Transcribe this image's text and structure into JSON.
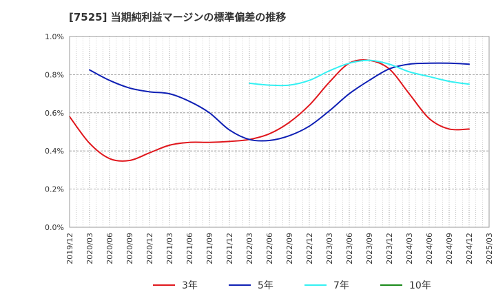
{
  "chart_data": {
    "type": "line",
    "title": "[7525]  当期純利益マージンの標準偏差の推移",
    "xlabel": "",
    "ylabel": "",
    "x_ticks": [
      "2019/12",
      "2020/03",
      "2020/06",
      "2020/09",
      "2020/12",
      "2021/03",
      "2021/06",
      "2021/09",
      "2021/12",
      "2022/03",
      "2022/06",
      "2022/09",
      "2022/12",
      "2023/03",
      "2023/06",
      "2023/09",
      "2023/12",
      "2024/03",
      "2024/06",
      "2024/09",
      "2024/12",
      "2025/03"
    ],
    "y_ticks": [
      "0.0%",
      "0.2%",
      "0.4%",
      "0.6%",
      "0.8%",
      "1.0%"
    ],
    "ylim": [
      0,
      1.0
    ],
    "y_unit": "%",
    "grid": true,
    "legend_position": "bottom",
    "series": [
      {
        "name": "3年",
        "color": "#e0161c",
        "points": [
          [
            "2019/12",
            0.58
          ],
          [
            "2020/03",
            0.44
          ],
          [
            "2020/06",
            0.36
          ],
          [
            "2020/09",
            0.35
          ],
          [
            "2020/12",
            0.39
          ],
          [
            "2021/03",
            0.43
          ],
          [
            "2021/06",
            0.445
          ],
          [
            "2021/09",
            0.445
          ],
          [
            "2021/12",
            0.45
          ],
          [
            "2022/03",
            0.46
          ],
          [
            "2022/06",
            0.49
          ],
          [
            "2022/09",
            0.55
          ],
          [
            "2022/12",
            0.64
          ],
          [
            "2023/03",
            0.76
          ],
          [
            "2023/06",
            0.86
          ],
          [
            "2023/09",
            0.875
          ],
          [
            "2023/12",
            0.83
          ],
          [
            "2024/03",
            0.7
          ],
          [
            "2024/06",
            0.57
          ],
          [
            "2024/09",
            0.515
          ],
          [
            "2024/12",
            0.515
          ]
        ]
      },
      {
        "name": "5年",
        "color": "#0e1fb4",
        "points": [
          [
            "2020/03",
            0.825
          ],
          [
            "2020/06",
            0.77
          ],
          [
            "2020/09",
            0.73
          ],
          [
            "2020/12",
            0.71
          ],
          [
            "2021/03",
            0.7
          ],
          [
            "2021/06",
            0.66
          ],
          [
            "2021/09",
            0.6
          ],
          [
            "2021/12",
            0.51
          ],
          [
            "2022/03",
            0.46
          ],
          [
            "2022/06",
            0.455
          ],
          [
            "2022/09",
            0.48
          ],
          [
            "2022/12",
            0.53
          ],
          [
            "2023/03",
            0.61
          ],
          [
            "2023/06",
            0.7
          ],
          [
            "2023/09",
            0.77
          ],
          [
            "2023/12",
            0.83
          ],
          [
            "2024/03",
            0.855
          ],
          [
            "2024/06",
            0.86
          ],
          [
            "2024/09",
            0.86
          ],
          [
            "2024/12",
            0.855
          ]
        ]
      },
      {
        "name": "7年",
        "color": "#33f0f2",
        "points": [
          [
            "2022/03",
            0.755
          ],
          [
            "2022/06",
            0.745
          ],
          [
            "2022/09",
            0.745
          ],
          [
            "2022/12",
            0.77
          ],
          [
            "2023/03",
            0.82
          ],
          [
            "2023/06",
            0.86
          ],
          [
            "2023/09",
            0.875
          ],
          [
            "2023/12",
            0.855
          ],
          [
            "2024/03",
            0.815
          ],
          [
            "2024/06",
            0.79
          ],
          [
            "2024/09",
            0.765
          ],
          [
            "2024/12",
            0.75
          ]
        ]
      },
      {
        "name": "10年",
        "color": "#1a8a1a",
        "points": []
      }
    ]
  }
}
